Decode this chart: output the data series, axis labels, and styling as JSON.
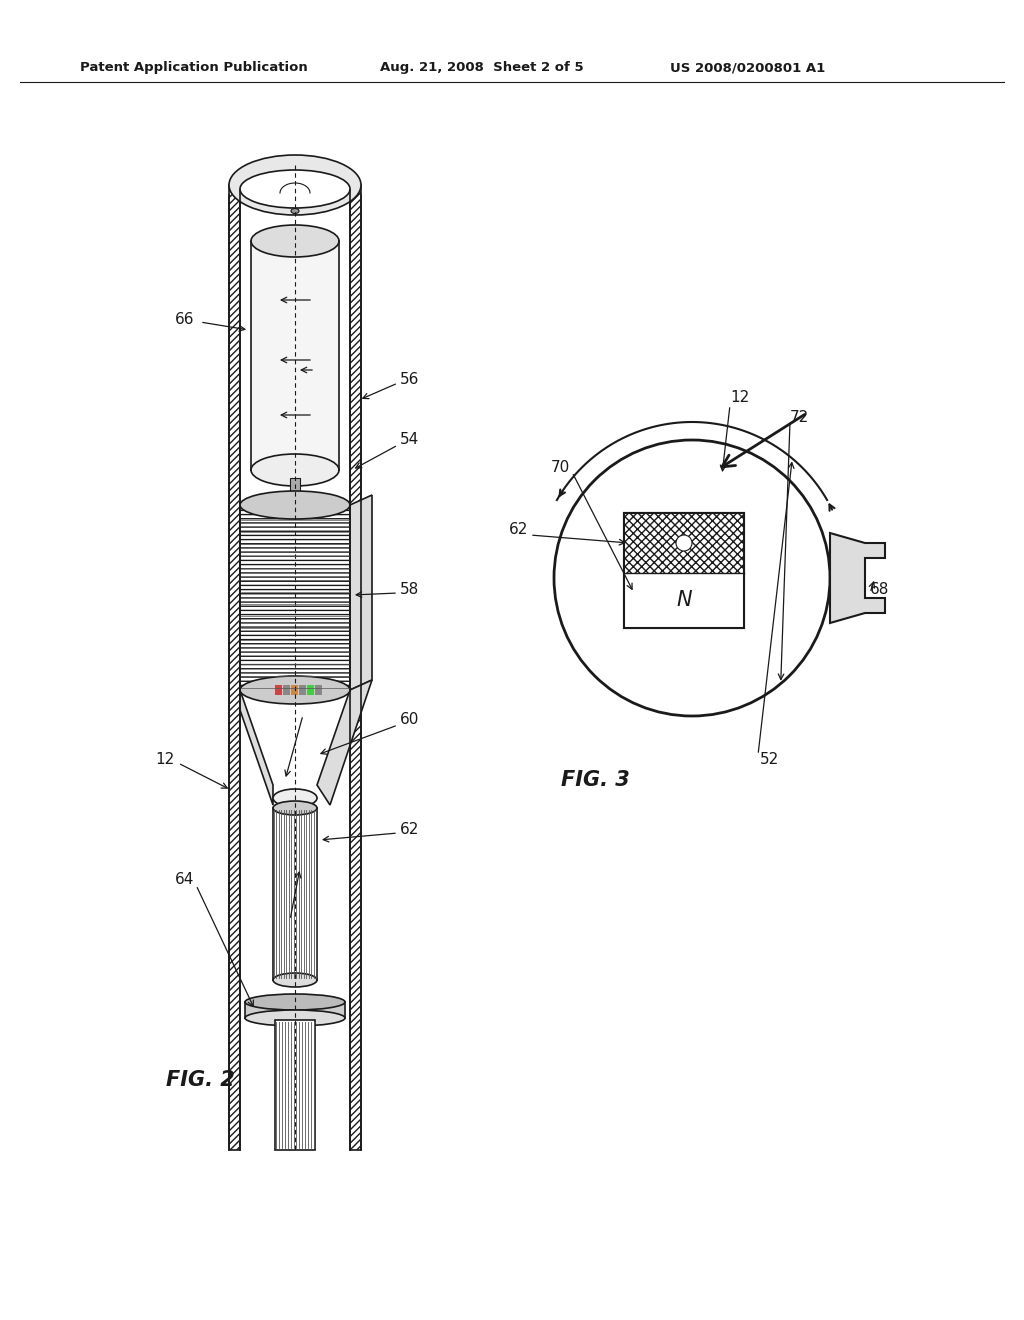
{
  "background_color": "#ffffff",
  "header_left": "Patent Application Publication",
  "header_mid": "Aug. 21, 2008  Sheet 2 of 5",
  "header_right": "US 2008/0200801 A1",
  "fig2_label": "FIG. 2",
  "fig3_label": "FIG. 3",
  "dark": "#1a1a1a",
  "gray_fill": "#e8e8e8",
  "med_gray": "#cccccc",
  "light_gray": "#f0f0f0"
}
